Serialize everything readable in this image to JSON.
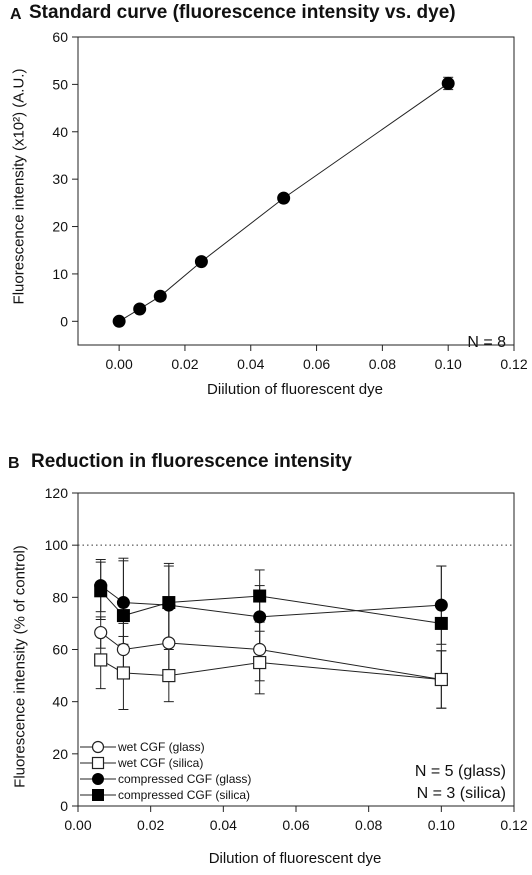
{
  "chart_data": [
    {
      "panel": "A",
      "type": "line",
      "title": "Standard curve (fluorescence intensity vs. dye)",
      "xlabel": "Diilution of fluorescent dye",
      "ylabel": "Fluorescence intensity (x10²) (A.U.)",
      "xlim": [
        -0.0125,
        0.12
      ],
      "ylim": [
        -5,
        60
      ],
      "xticks": [
        "0.00",
        "0.02",
        "0.04",
        "0.06",
        "0.08",
        "0.10",
        "0.12"
      ],
      "yticks": [
        "0",
        "10",
        "20",
        "30",
        "40",
        "50",
        "60"
      ],
      "annotation": "N = 8",
      "grid": false,
      "series": [
        {
          "x": [
            0.0,
            0.00625,
            0.0125,
            0.025,
            0.05,
            0.1
          ],
          "y": [
            0.0,
            2.6,
            5.3,
            12.6,
            26.0,
            50.2
          ],
          "err": [
            0.2,
            0.3,
            0.3,
            0.4,
            0.5,
            1.3
          ],
          "marker": "filled-circle"
        }
      ]
    },
    {
      "panel": "B",
      "type": "line",
      "title": "Reduction in fluorescence intensity",
      "xlabel": "Dilution of fluorescent dye",
      "ylabel": "Fluorescence intensity (% of control)",
      "xlim": [
        0.0,
        0.12
      ],
      "ylim": [
        0,
        120
      ],
      "xticks": [
        "0.00",
        "0.02",
        "0.04",
        "0.06",
        "0.08",
        "0.10",
        "0.12"
      ],
      "yticks": [
        "0",
        "20",
        "40",
        "60",
        "80",
        "100",
        "120"
      ],
      "reference_line": 100,
      "annotations": [
        "N = 5 (glass)",
        "N = 3 (silica)"
      ],
      "legend_position": "bottom-left",
      "grid": false,
      "x": [
        0.00625,
        0.0125,
        0.025,
        0.05,
        0.1
      ],
      "series": [
        {
          "name": "wet CGF (glass)",
          "marker": "open-circle",
          "values": [
            66.5,
            60.0,
            62.5,
            60.0,
            48.5
          ],
          "err": [
            6,
            10,
            14,
            12,
            11
          ]
        },
        {
          "name": "wet CGF (silica)",
          "marker": "open-square",
          "values": [
            56.0,
            51.0,
            50.0,
            55.0,
            48.5
          ],
          "err": [
            11,
            14,
            10,
            12,
            11
          ]
        },
        {
          "name": "compressed CGF (glass)",
          "marker": "filled-circle",
          "values": [
            84.5,
            78.0,
            77.0,
            72.5,
            77.0
          ],
          "err": [
            10,
            16,
            15,
            12,
            15
          ]
        },
        {
          "name": "compressed CGF (silica)",
          "marker": "filled-square",
          "values": [
            82.5,
            73.0,
            78.0,
            80.5,
            70.0
          ],
          "err": [
            11,
            22,
            15,
            10,
            22
          ]
        }
      ]
    }
  ]
}
